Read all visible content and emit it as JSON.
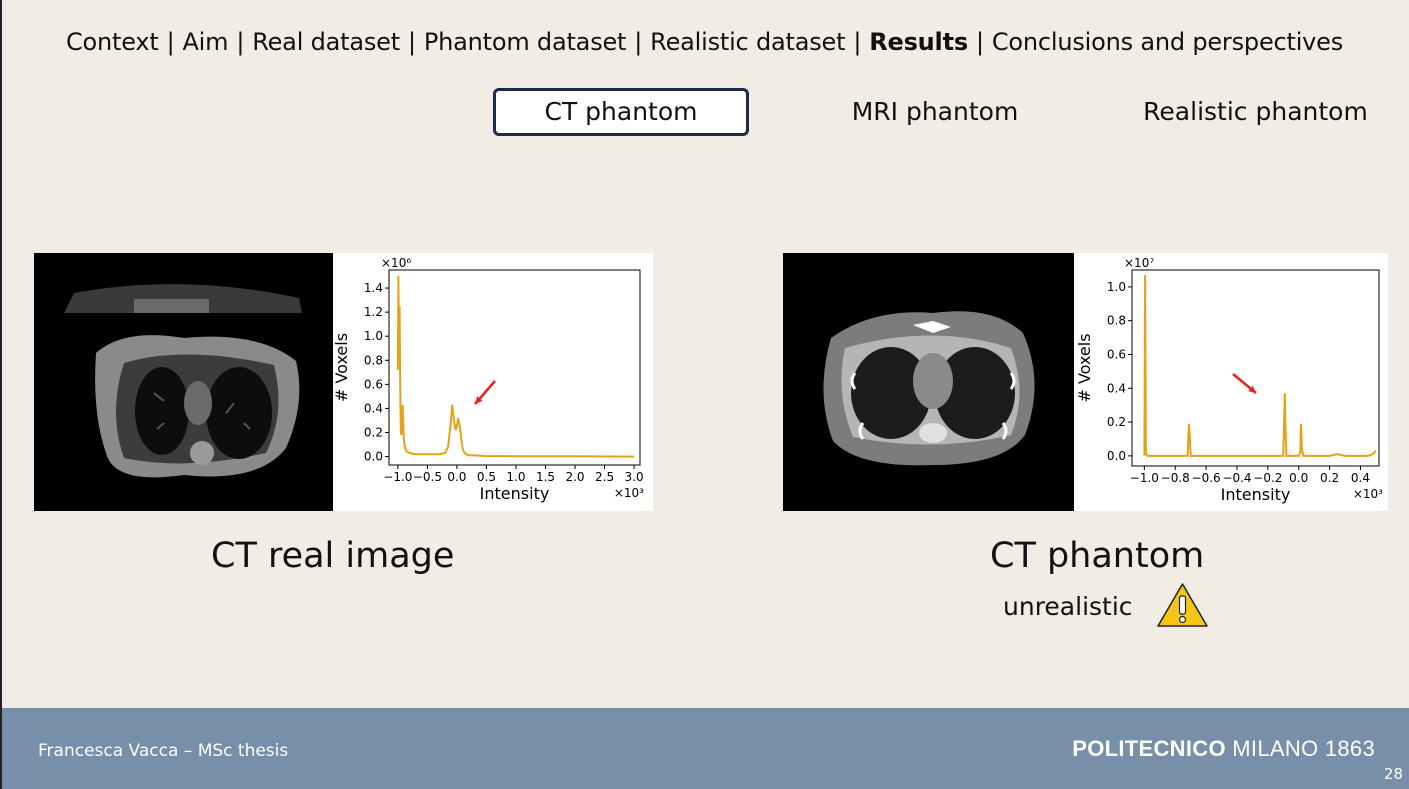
{
  "nav": {
    "items": [
      "Context",
      "Aim",
      "Real dataset",
      "Phantom dataset",
      "Realistic dataset",
      "Results",
      "Conclusions and perspectives"
    ],
    "active": "Results",
    "separator": "|"
  },
  "tabs": [
    {
      "label": "CT phantom",
      "selected": true
    },
    {
      "label": "MRI phantom",
      "selected": false
    },
    {
      "label": "Realistic phantom",
      "selected": false
    }
  ],
  "left_panel": {
    "caption_part1": "CT ",
    "caption_part2": "real",
    "caption_part3": " image",
    "image_icon": "ct-scan-real-image"
  },
  "right_panel": {
    "caption_part1": "CT ",
    "caption_part2": "phantom",
    "note": "unrealistic",
    "warning_icon": "warning-triangle-icon",
    "image_icon": "ct-scan-phantom-image"
  },
  "colors": {
    "series": "#e6a117",
    "arrow": "#e8211b",
    "footer": "#778fa8",
    "tab_border": "#1b2a4a"
  },
  "chart_data": [
    {
      "type": "line",
      "title": "",
      "xlabel": "Intensity",
      "ylabel": "# Voxels",
      "y_multiplier": "×10⁶",
      "x_multiplier": "×10³",
      "xlim": [
        -1.15,
        3.1
      ],
      "ylim": [
        -0.07,
        1.55
      ],
      "xticks": [
        -1.0,
        -0.5,
        0.0,
        0.5,
        1.0,
        1.5,
        2.0,
        2.5,
        3.0
      ],
      "xtick_labels": [
        "−1.0",
        "−0.5",
        "0.0",
        "0.5",
        "1.0",
        "1.5",
        "2.0",
        "2.5",
        "3.0"
      ],
      "yticks": [
        0.0,
        0.2,
        0.4,
        0.6,
        0.8,
        1.0,
        1.2,
        1.4
      ],
      "ytick_labels": [
        "0.0",
        "0.2",
        "0.4",
        "0.6",
        "0.8",
        "1.0",
        "1.2",
        "1.4"
      ],
      "series": [
        {
          "x": [
            -1.0,
            -0.99,
            -0.98,
            -0.97,
            -0.96,
            -0.95,
            -0.94,
            -0.93,
            -0.92,
            -0.91,
            -0.9,
            -0.88,
            -0.86,
            -0.84,
            -0.8,
            -0.7,
            -0.5,
            -0.3,
            -0.2,
            -0.15,
            -0.1,
            -0.08,
            -0.05,
            -0.02,
            0.0,
            0.02,
            0.05,
            0.08,
            0.1,
            0.13,
            0.16,
            0.2,
            0.3,
            0.5,
            1.0,
            2.0,
            3.0
          ],
          "y": [
            0.72,
            1.5,
            0.8,
            1.25,
            0.6,
            0.2,
            0.18,
            0.3,
            0.43,
            0.3,
            0.14,
            0.08,
            0.05,
            0.04,
            0.03,
            0.02,
            0.02,
            0.02,
            0.03,
            0.08,
            0.3,
            0.43,
            0.3,
            0.22,
            0.25,
            0.32,
            0.25,
            0.12,
            0.06,
            0.03,
            0.02,
            0.01,
            0.01,
            0.005,
            0.003,
            0.002,
            0.0
          ]
        }
      ],
      "annotation": "red arrow pointing to peak near 0.0"
    },
    {
      "type": "line",
      "title": "",
      "xlabel": "Intensity",
      "ylabel": "# Voxels",
      "y_multiplier": "×10⁷",
      "x_multiplier": "×10³",
      "xlim": [
        -1.08,
        0.52
      ],
      "ylim": [
        -0.06,
        1.1
      ],
      "xticks": [
        -1.0,
        -0.8,
        -0.6,
        -0.4,
        -0.2,
        0.0,
        0.2,
        0.4
      ],
      "xtick_labels": [
        "−1.0",
        "−0.8",
        "−0.6",
        "−0.4",
        "−0.2",
        "0.0",
        "0.2",
        "0.4"
      ],
      "yticks": [
        0.0,
        0.2,
        0.4,
        0.6,
        0.8,
        1.0
      ],
      "ytick_labels": [
        "0.0",
        "0.2",
        "0.4",
        "0.6",
        "0.8",
        "1.0"
      ],
      "series": [
        {
          "x": [
            -1.0,
            -0.995,
            -0.99,
            -0.98,
            -0.72,
            -0.715,
            -0.71,
            -0.705,
            -0.7,
            -0.1,
            -0.095,
            -0.09,
            -0.085,
            -0.08,
            0.0,
            0.01,
            0.015,
            0.02,
            0.03,
            0.2,
            0.25,
            0.3,
            0.45,
            0.48,
            0.5
          ],
          "y": [
            0.0,
            1.07,
            0.02,
            0.0,
            0.0,
            0.1,
            0.19,
            0.1,
            0.0,
            0.0,
            0.2,
            0.37,
            0.15,
            0.0,
            0.0,
            0.02,
            0.19,
            0.05,
            0.0,
            0.0,
            0.01,
            0.0,
            0.0,
            0.01,
            0.03
          ]
        }
      ],
      "annotation": "red arrow pointing to peak near -0.1"
    }
  ],
  "footer": {
    "author": "Francesca Vacca – MSc thesis",
    "brand_bold": "POLITECNICO",
    "brand_rest": " MILANO 1863",
    "page": "28"
  }
}
